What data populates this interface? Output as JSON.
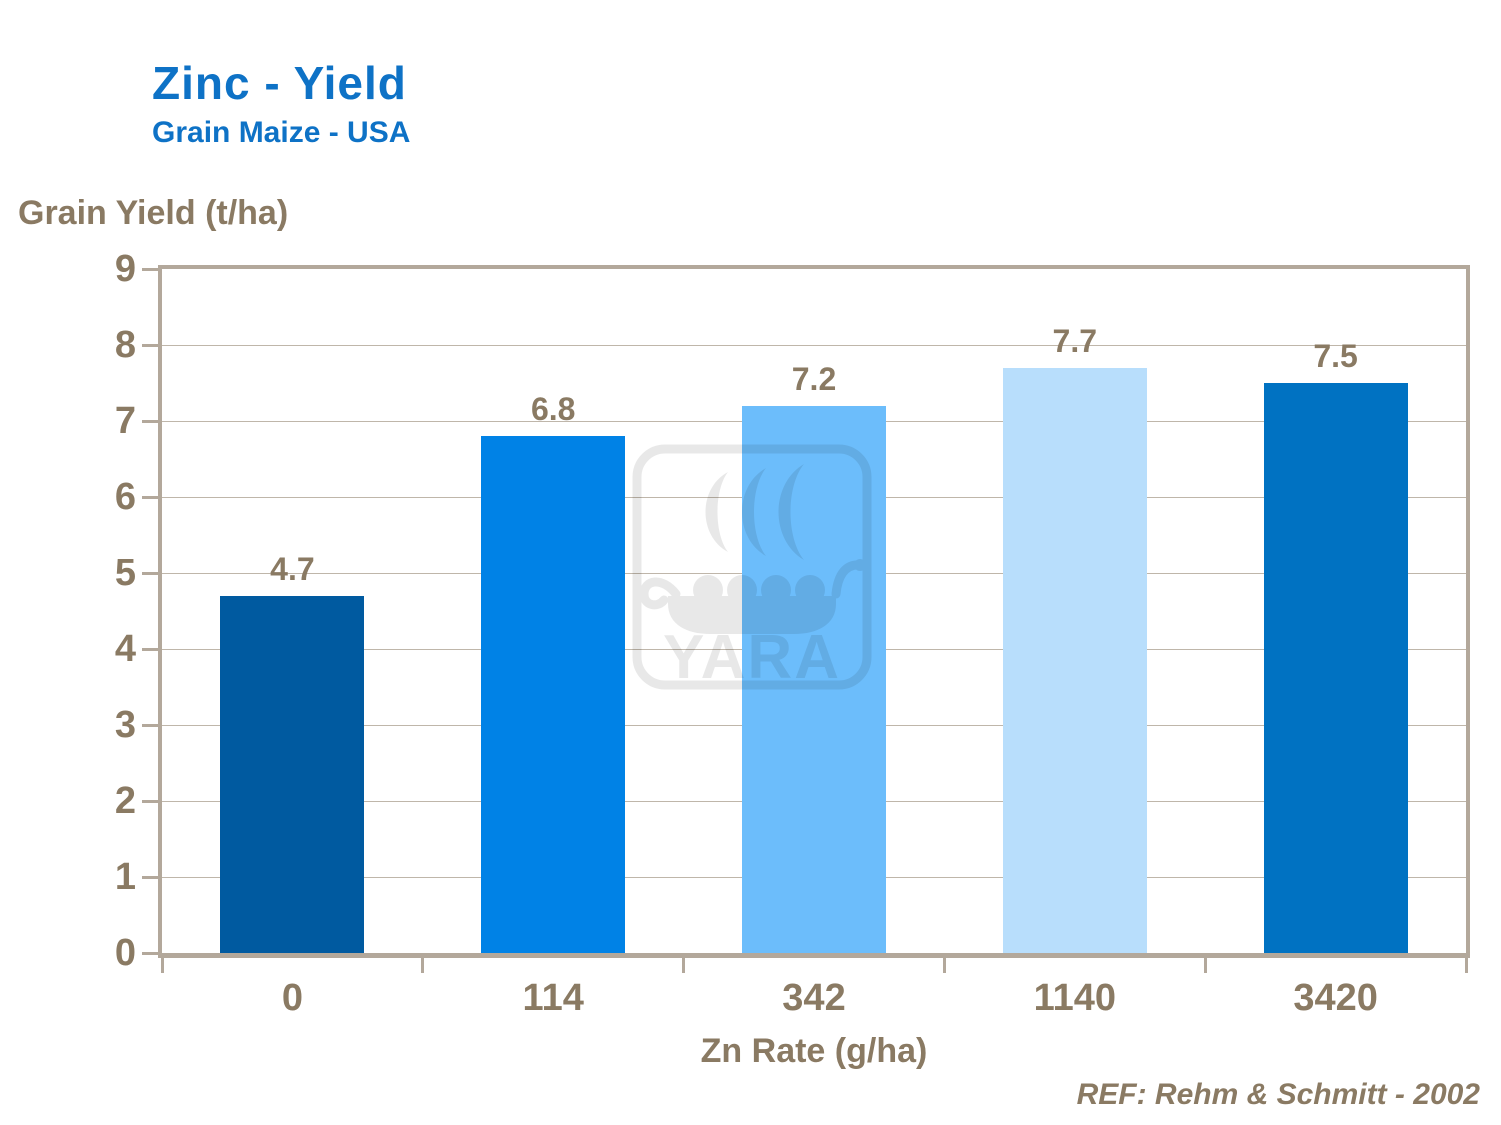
{
  "header": {
    "title": "Zinc - Yield",
    "subtitle": "Grain Maize - USA"
  },
  "chart_data": {
    "type": "bar",
    "title": "Zinc - Yield",
    "subtitle": "Grain Maize - USA",
    "ylabel": "Grain Yield (t/ha)",
    "xlabel": "Zn Rate (g/ha)",
    "categories": [
      "0",
      "114",
      "342",
      "1140",
      "3420"
    ],
    "values": [
      4.7,
      6.8,
      7.2,
      7.7,
      7.5
    ],
    "bar_colors": [
      "#005aa0",
      "#0082e6",
      "#6cbdfb",
      "#b8defc",
      "#0072c2"
    ],
    "ylim": [
      0,
      9
    ],
    "ytick_step": 1,
    "grid": true,
    "legend": "none"
  },
  "colors": {
    "title_blue": "#0e72c6",
    "axis_text_brown": "#8a7a63",
    "frame_tan": "#b3a89b",
    "gridline": "#bfb6aa"
  },
  "watermark": {
    "icon": "yara-viking-ship-logo",
    "text": "YARA"
  },
  "footer": {
    "reference": "REF: Rehm & Schmitt - 2002"
  }
}
